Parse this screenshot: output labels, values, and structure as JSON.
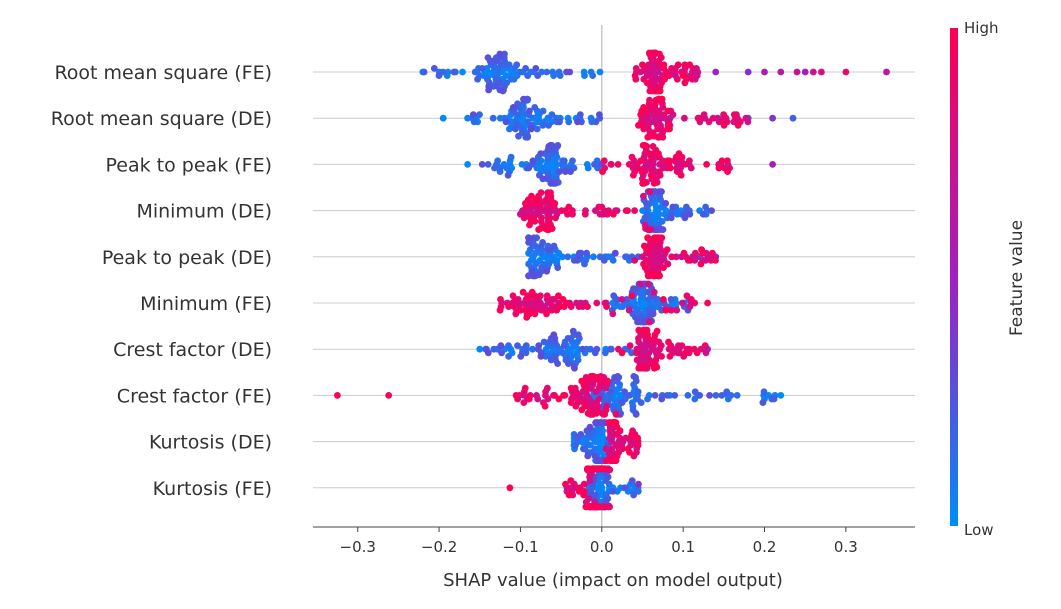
{
  "chart_data": {
    "type": "scatter",
    "title": "",
    "xlabel": "SHAP value (impact on model output)",
    "ylabel": "",
    "xlim": [
      -0.355,
      0.385
    ],
    "xticks": [
      {
        "value": -0.3,
        "label": "−0.3"
      },
      {
        "value": -0.2,
        "label": "−0.2"
      },
      {
        "value": -0.1,
        "label": "−0.1"
      },
      {
        "value": 0.0,
        "label": "0.0"
      },
      {
        "value": 0.1,
        "label": "0.1"
      },
      {
        "value": 0.2,
        "label": "0.2"
      },
      {
        "value": 0.3,
        "label": "0.3"
      }
    ],
    "grid": true,
    "colorbar": {
      "title": "Feature value",
      "high_label": "High",
      "low_label": "Low",
      "high_color": "#ff0052",
      "mid_color": "#a020c0",
      "low_color": "#008bfb",
      "placement": "right"
    },
    "features": [
      {
        "name": "Root mean square (FE)",
        "low_range": [
          -0.22,
          0.0
        ],
        "low_center": -0.13,
        "high_range": [
          0.04,
          0.12
        ],
        "high_center": 0.065,
        "extra_points": [
          {
            "x": -0.22,
            "value": 0.0
          },
          {
            "x": -0.19,
            "value": 0.05
          },
          {
            "x": 0.14,
            "value": 0.5
          },
          {
            "x": 0.18,
            "value": 0.45
          },
          {
            "x": 0.2,
            "value": 0.55
          },
          {
            "x": 0.22,
            "value": 0.6
          },
          {
            "x": 0.24,
            "value": 0.7
          },
          {
            "x": 0.25,
            "value": 0.55
          },
          {
            "x": 0.26,
            "value": 0.75
          },
          {
            "x": 0.27,
            "value": 0.8
          },
          {
            "x": 0.3,
            "value": 0.85
          },
          {
            "x": 0.35,
            "value": 0.65
          }
        ]
      },
      {
        "name": "Root mean square (DE)",
        "low_range": [
          -0.16,
          0.0
        ],
        "low_center": -0.09,
        "high_range": [
          0.04,
          0.18
        ],
        "high_center": 0.065,
        "extra_points": [
          {
            "x": -0.195,
            "value": 0.0
          },
          {
            "x": -0.165,
            "value": 0.05
          },
          {
            "x": 0.15,
            "value": 0.35
          },
          {
            "x": 0.18,
            "value": 0.3
          },
          {
            "x": 0.21,
            "value": 0.4
          },
          {
            "x": 0.235,
            "value": 0.2
          }
        ]
      },
      {
        "name": "Peak to peak (FE)",
        "low_range": [
          -0.15,
          0.0
        ],
        "low_center": -0.06,
        "high_range": [
          0.0,
          0.16
        ],
        "high_center": 0.058,
        "extra_points": [
          {
            "x": -0.165,
            "value": 0.0
          },
          {
            "x": 0.21,
            "value": 0.55
          },
          {
            "x": 0.155,
            "value": 0.4
          }
        ]
      },
      {
        "name": "Minimum (DE)",
        "low_range": [
          0.05,
          0.13
        ],
        "low_center": 0.065,
        "high_range": [
          -0.1,
          0.07
        ],
        "high_center": -0.075,
        "extra_points": [
          {
            "x": 0.135,
            "value": 0.3
          },
          {
            "x": 0.0,
            "value": 0.9
          },
          {
            "x": 0.03,
            "value": 0.8
          }
        ]
      },
      {
        "name": "Peak to peak (DE)",
        "low_range": [
          -0.09,
          0.05
        ],
        "low_center": -0.078,
        "high_range": [
          0.04,
          0.14
        ],
        "high_center": 0.065,
        "extra_points": [
          {
            "x": 0.14,
            "value": 0.45
          },
          {
            "x": 0.12,
            "value": 0.35
          }
        ]
      },
      {
        "name": "Minimum (FE)",
        "low_range": [
          0.01,
          0.11
        ],
        "low_center": 0.05,
        "high_range": [
          -0.125,
          0.13
        ],
        "high_center": -0.08,
        "extra_points": [
          {
            "x": -0.125,
            "value": 1.0
          },
          {
            "x": 0.13,
            "value": 0.95
          },
          {
            "x": 0.11,
            "value": 0.7
          }
        ]
      },
      {
        "name": "Crest factor (DE)",
        "low_range": [
          -0.15,
          0.04
        ],
        "low_center": -0.05,
        "high_range": [
          0.02,
          0.13
        ],
        "high_center": 0.058,
        "extra_points": [
          {
            "x": -0.15,
            "value": 0.0
          },
          {
            "x": 0.13,
            "value": 0.45
          }
        ]
      },
      {
        "name": "Crest factor (FE)",
        "low_range": [
          -0.01,
          0.22
        ],
        "low_center": 0.02,
        "high_range": [
          -0.11,
          0.02
        ],
        "high_center": -0.015,
        "extra_points": [
          {
            "x": -0.325,
            "value": 1.0
          },
          {
            "x": -0.262,
            "value": 0.95
          },
          {
            "x": 0.22,
            "value": 0.0
          },
          {
            "x": 0.205,
            "value": 0.0
          },
          {
            "x": 0.155,
            "value": 0.05
          }
        ]
      },
      {
        "name": "Kurtosis (DE)",
        "low_range": [
          -0.035,
          0.01
        ],
        "low_center": -0.003,
        "high_range": [
          0.005,
          0.045
        ],
        "high_center": 0.015,
        "extra_points": []
      },
      {
        "name": "Kurtosis (FE)",
        "low_range": [
          -0.02,
          0.045
        ],
        "low_center": 0.0,
        "high_range": [
          -0.045,
          0.01
        ],
        "high_center": -0.01,
        "extra_points": [
          {
            "x": -0.113,
            "value": 1.0
          },
          {
            "x": 0.045,
            "value": 0.4
          }
        ]
      }
    ]
  }
}
